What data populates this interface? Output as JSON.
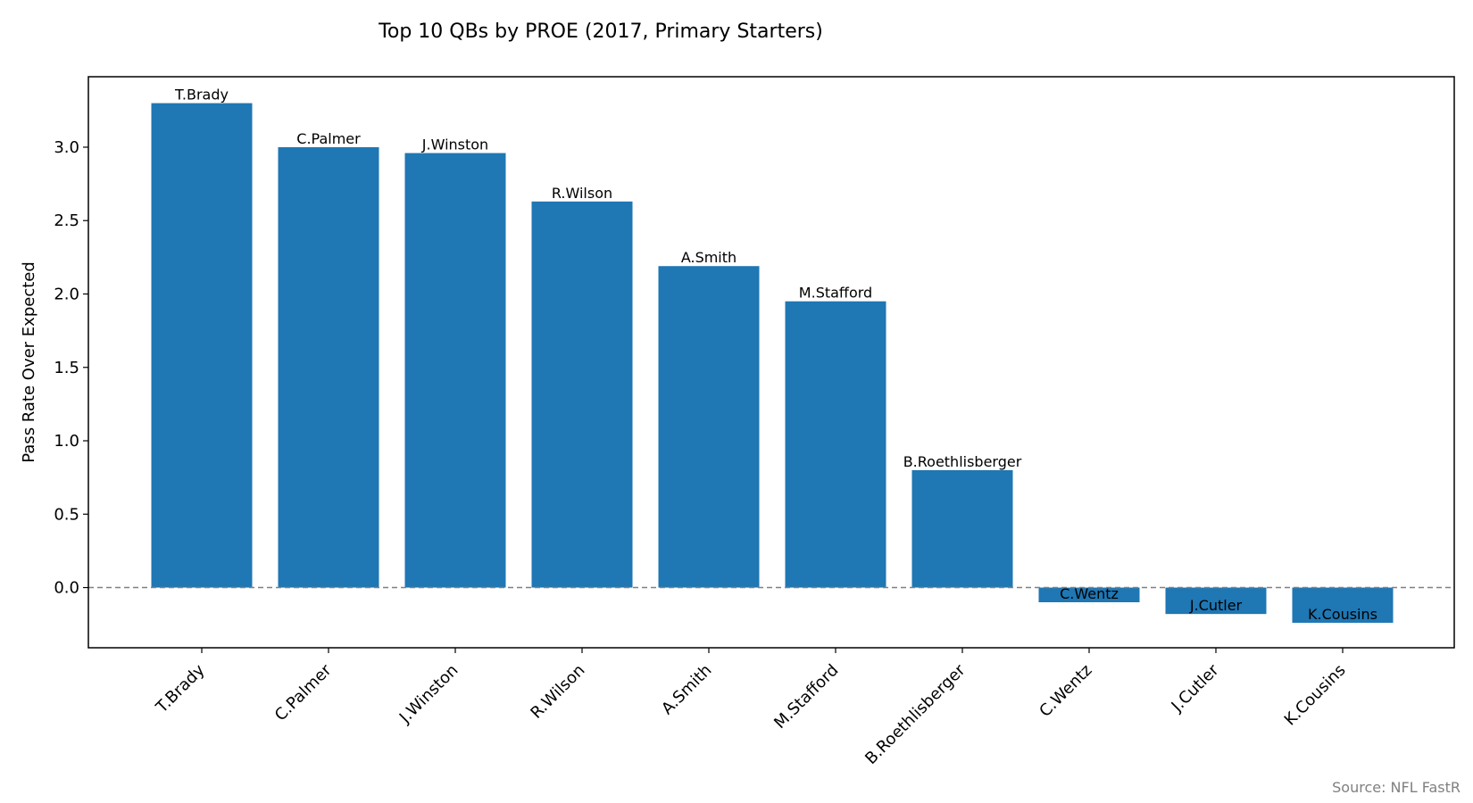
{
  "chart_data": {
    "type": "bar",
    "title": "Top 10 QBs by PROE (2017, Primary Starters)",
    "xlabel": "",
    "ylabel": "Pass Rate Over Expected",
    "categories": [
      "T.Brady",
      "C.Palmer",
      "J.Winston",
      "R.Wilson",
      "A.Smith",
      "M.Stafford",
      "B.Roethlisberger",
      "C.Wentz",
      "J.Cutler",
      "K.Cousins"
    ],
    "values": [
      3.3,
      3.0,
      2.96,
      2.63,
      2.19,
      1.95,
      0.8,
      -0.1,
      -0.18,
      -0.24
    ],
    "ylim": [
      -0.41,
      3.48
    ],
    "yticks": [
      "0.0",
      "0.5",
      "1.0",
      "1.5",
      "2.0",
      "2.5",
      "3.0"
    ],
    "reference_line": {
      "y": 0,
      "style": "dashed",
      "color": "#808080"
    },
    "bar_color": "#1f77b4",
    "grid": false,
    "legend": "none"
  },
  "source_note": "Source: NFL FastR"
}
